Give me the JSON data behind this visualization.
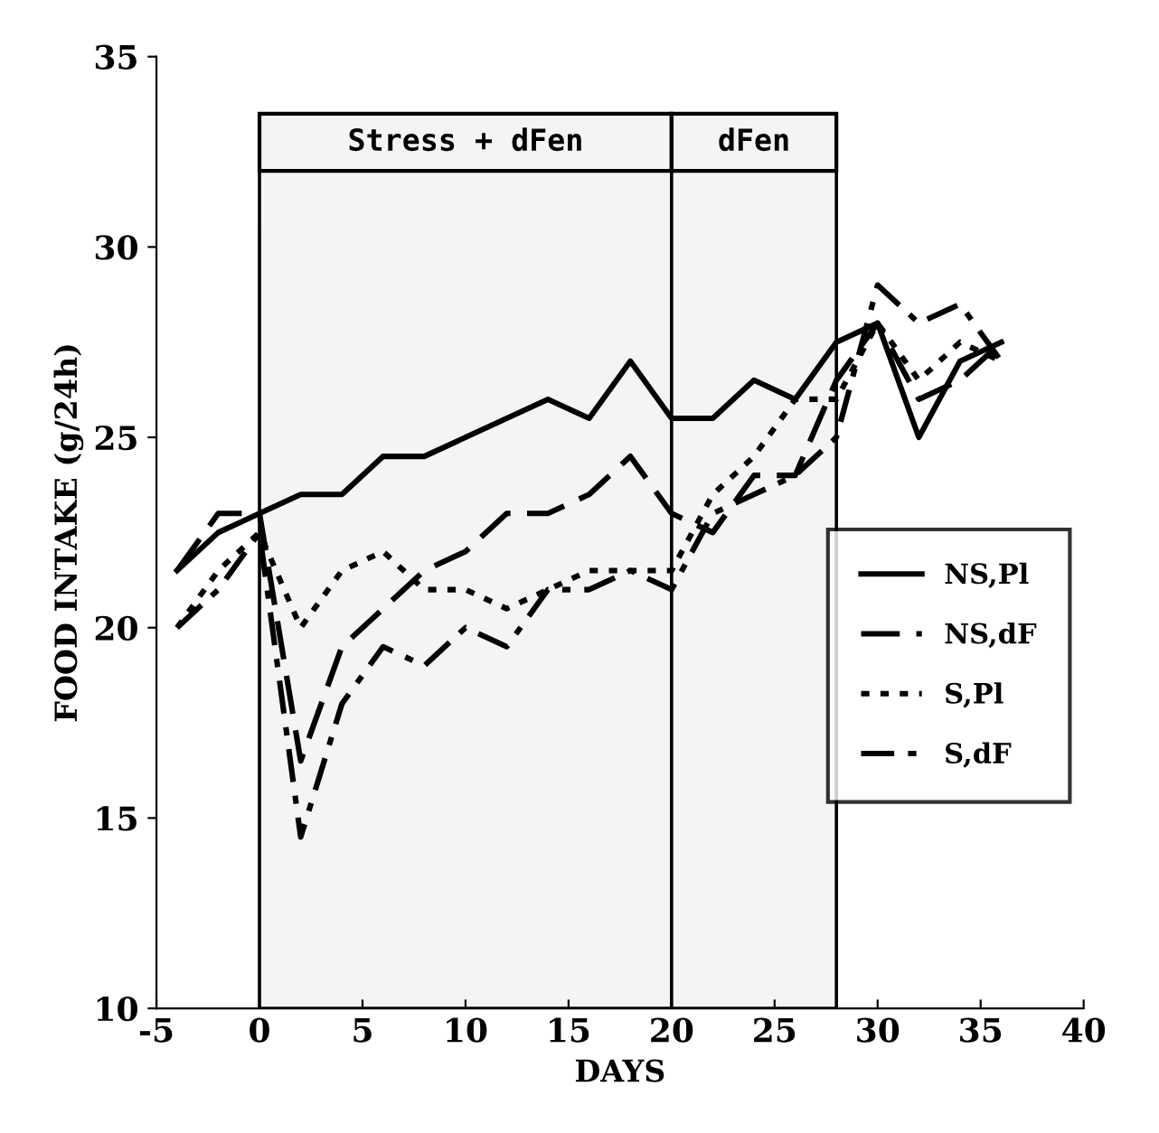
{
  "chart_data": {
    "type": "line",
    "xlabel": "DAYS",
    "ylabel": "FOOD INTAKE (g/24h)",
    "x": [
      -4,
      -2,
      0,
      2,
      4,
      6,
      8,
      10,
      12,
      14,
      16,
      18,
      20,
      22,
      24,
      26,
      28,
      30,
      32,
      34,
      36
    ],
    "series": [
      {
        "name": "NS,Pl",
        "color": "#000000",
        "line_style": "solid",
        "values": [
          21.5,
          22.5,
          23,
          23.5,
          23.5,
          24.5,
          24.5,
          25,
          25.5,
          26,
          25.5,
          27,
          25.5,
          25.5,
          26.5,
          26,
          27.5,
          28,
          25,
          27,
          27.5
        ]
      },
      {
        "name": "NS,dF",
        "color": "#000000",
        "line_style": "dashed",
        "values": [
          21.5,
          23,
          23,
          16.5,
          19.5,
          20.5,
          21.5,
          22,
          23,
          23,
          23.5,
          24.5,
          23,
          22.5,
          24,
          24,
          26.5,
          28,
          26,
          26.5,
          27.5
        ]
      },
      {
        "name": "S,Pl",
        "color": "#000000",
        "line_style": "dotted",
        "values": [
          20,
          21.5,
          22.5,
          20,
          21.5,
          22,
          21,
          21,
          20.5,
          21,
          21.5,
          21.5,
          21.5,
          23.5,
          24.5,
          26,
          26,
          28,
          26.5,
          27.5,
          27
        ]
      },
      {
        "name": "S,dF",
        "color": "#000000",
        "line_style": "dashdot",
        "values": [
          20,
          21,
          22.5,
          14.5,
          18,
          19.5,
          19,
          20,
          19.5,
          21,
          21,
          21.5,
          21,
          23,
          23.5,
          24,
          25,
          29,
          28,
          28.5,
          27
        ]
      }
    ],
    "bands": [
      {
        "axis": "x",
        "from": 0,
        "to": 20,
        "label": "Stress + dFen",
        "color": "#f4f4f4"
      },
      {
        "axis": "x",
        "from": 20,
        "to": 28,
        "label": "dFen",
        "color": "#f4f4f4"
      }
    ],
    "xlim": [
      -5,
      40
    ],
    "ylim": [
      10,
      35
    ],
    "xticks": [
      -5,
      0,
      5,
      10,
      15,
      20,
      25,
      30,
      35,
      40
    ],
    "yticks": [
      10,
      15,
      20,
      25,
      30,
      35
    ],
    "grid": false,
    "legend": "right",
    "marker": "none"
  }
}
